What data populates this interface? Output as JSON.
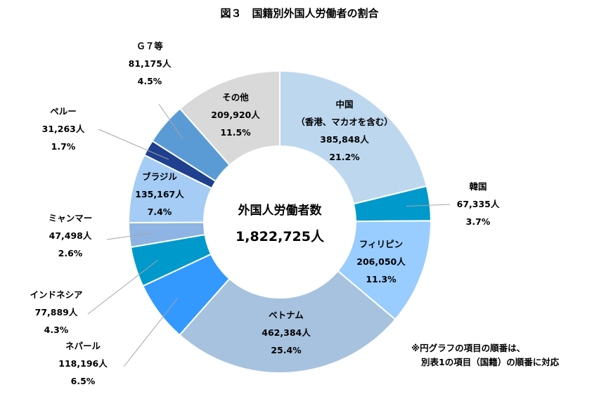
{
  "chart_data": {
    "type": "pie",
    "title": "図３　国籍別外国人労働者の割合",
    "center_label": "外国人労働者数",
    "center_value": "1,822,725人",
    "slices": [
      {
        "name": "中国",
        "subname": "（香港、マカオを含む）",
        "count": "385,848人",
        "percent": "21.2%",
        "value": 21.2,
        "color": "#bdd7ee",
        "label_pos": "inside"
      },
      {
        "name": "韓国",
        "count": "67,335人",
        "percent": "3.7%",
        "value": 3.7,
        "color": "#0099cc",
        "label_pos": "outside"
      },
      {
        "name": "フィリピン",
        "count": "206,050人",
        "percent": "11.3%",
        "value": 11.3,
        "color": "#99ccff",
        "label_pos": "inside"
      },
      {
        "name": "ベトナム",
        "count": "462,384人",
        "percent": "25.4%",
        "value": 25.4,
        "color": "#a6c2de",
        "label_pos": "inside"
      },
      {
        "name": "ネパール",
        "count": "118,196人",
        "percent": "6.5%",
        "value": 6.5,
        "color": "#3399ff",
        "label_pos": "outside"
      },
      {
        "name": "インドネシア",
        "count": "77,889人",
        "percent": "4.3%",
        "value": 4.3,
        "color": "#0099cc",
        "label_pos": "outside"
      },
      {
        "name": "ミャンマー",
        "count": "47,498人",
        "percent": "2.6%",
        "value": 2.6,
        "color": "#8db4e2",
        "label_pos": "outside"
      },
      {
        "name": "ブラジル",
        "count": "135,167人",
        "percent": "7.4%",
        "value": 7.4,
        "color": "#a4ccf5",
        "label_pos": "inside"
      },
      {
        "name": "ペルー",
        "count": "31,263人",
        "percent": "1.7%",
        "value": 1.7,
        "color": "#1f3f8f",
        "label_pos": "outside"
      },
      {
        "name": "Ｇ７等",
        "count": "81,175人",
        "percent": "4.5%",
        "value": 4.5,
        "color": "#5b9bd5",
        "label_pos": "outside"
      },
      {
        "name": "その他",
        "count": "209,920人",
        "percent": "11.5%",
        "value": 11.5,
        "color": "#d9d9d9",
        "label_pos": "inside"
      }
    ]
  },
  "note": {
    "line1": "※円グラフの項目の順番は、",
    "line2": "別表1の項目（国籍）の順番に対応"
  }
}
